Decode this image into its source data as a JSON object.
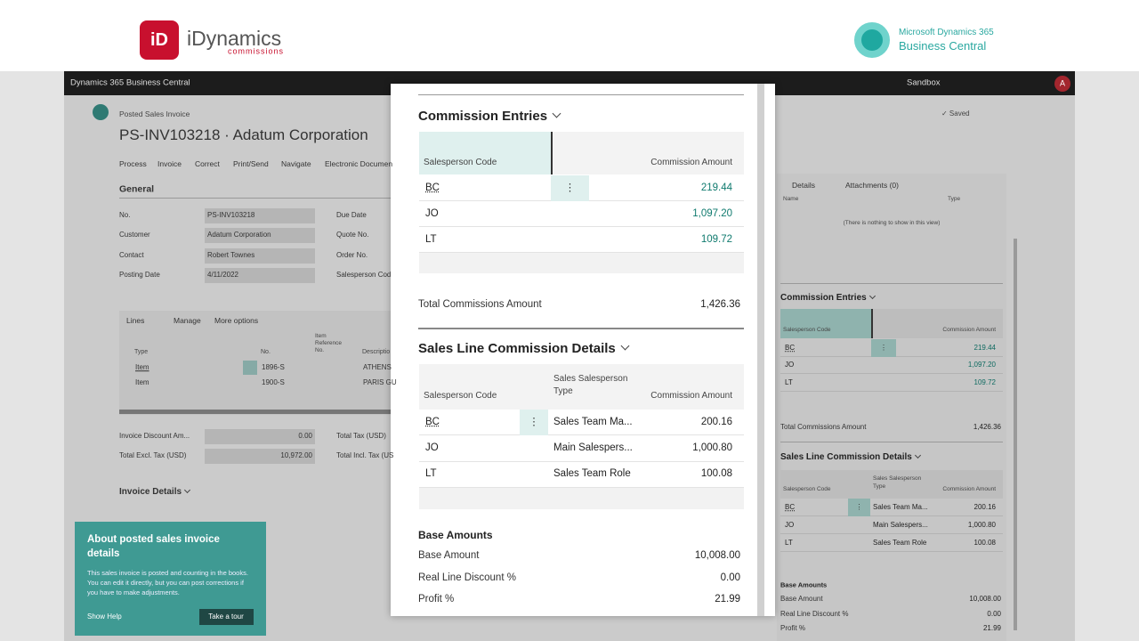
{
  "header": {
    "brand": "iDynamics",
    "tagline": "commissions",
    "product_line1": "Microsoft Dynamics 365",
    "product_line2": "Business Central"
  },
  "topbar": {
    "app_name": "Dynamics 365 Business Central",
    "environment": "Sandbox",
    "avatar": "A"
  },
  "page": {
    "breadcrumb": "Posted Sales Invoice",
    "title": "PS-INV103218 · Adatum Corporation",
    "actions": [
      "Process",
      "Invoice",
      "Correct",
      "Print/Send",
      "Navigate",
      "Electronic Documen"
    ],
    "saved": "✓ Saved"
  },
  "general": {
    "title": "General",
    "fields": [
      {
        "label": "No.",
        "value": "PS-INV103218"
      },
      {
        "label": "Customer",
        "value": "Adatum Corporation"
      },
      {
        "label": "Contact",
        "value": "Robert Townes"
      },
      {
        "label": "Posting Date",
        "value": "4/11/2022"
      }
    ],
    "right_labels": [
      "Due Date",
      "Quote No.",
      "Order No.",
      "Salesperson Cod"
    ]
  },
  "lines": {
    "tabs": [
      "Lines",
      "Manage",
      "More options"
    ],
    "columns": [
      "Type",
      "No.",
      "Item Reference No.",
      "Descriptio"
    ],
    "rows": [
      [
        "Item",
        "1896-S",
        "ATHENS"
      ],
      [
        "Item",
        "1900-S",
        "PARIS GU"
      ]
    ]
  },
  "totals": {
    "left": [
      {
        "label": "Invoice Discount Am...",
        "value": "0.00"
      },
      {
        "label": "Total Excl. Tax (USD)",
        "value": "10,972.00"
      }
    ],
    "right_labels": [
      "Total Tax (USD)",
      "Total Incl. Tax (US"
    ]
  },
  "invoice_details": "Invoice Details",
  "teaching_tip": {
    "title": "About posted sales invoice details",
    "body": "This sales invoice is posted and counting in the books. You can edit it directly, but you can post corrections if you have to make adjustments.",
    "link": "Show Help",
    "button": "Take a tour"
  },
  "factbox": {
    "tabs": [
      "Details",
      "Attachments (0)"
    ],
    "columns": [
      "Name",
      "Type"
    ],
    "empty": "(There is nothing to show in this view)"
  },
  "commission_entries": {
    "title": "Commission Entries",
    "columns": [
      "Salesperson Code",
      "Commission Amount"
    ],
    "rows": [
      [
        "BC",
        "219.44"
      ],
      [
        "JO",
        "1,097.20"
      ],
      [
        "LT",
        "109.72"
      ]
    ],
    "total_label": "Total Commissions Amount",
    "total": "1,426.36"
  },
  "sales_line_details": {
    "title": "Sales Line Commission Details",
    "columns": [
      "Salesperson Code",
      "Sales Salesperson Type",
      "Commission Amount"
    ],
    "rows": [
      [
        "BC",
        "Sales Team Ma...",
        "200.16"
      ],
      [
        "JO",
        "Main Salespers...",
        "1,000.80"
      ],
      [
        "LT",
        "Sales Team Role",
        "100.08"
      ]
    ]
  },
  "base_amounts": {
    "title": "Base Amounts",
    "rows": [
      {
        "label": "Base Amount",
        "value": "10,008.00"
      },
      {
        "label": "Real Line Discount %",
        "value": "0.00"
      },
      {
        "label": "Profit %",
        "value": "21.99"
      }
    ]
  }
}
